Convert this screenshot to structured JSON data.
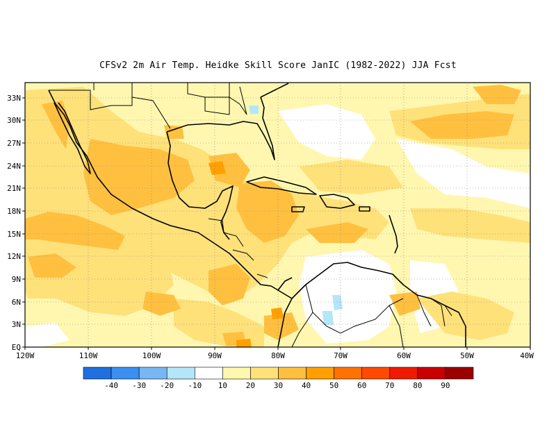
{
  "title": "CFSv2  2m Air Temp. Heidke Skill Score JanIC (1982-2022) JJA Fcst",
  "map": {
    "lat_labels": [
      "EQ",
      "3N",
      "6N",
      "9N",
      "12N",
      "15N",
      "18N",
      "21N",
      "24N",
      "27N",
      "30N",
      "33N"
    ],
    "lon_labels": [
      "120W",
      "110W",
      "100W",
      "90W",
      "80W",
      "70W",
      "60W",
      "50W",
      "40W"
    ],
    "lon_range": [
      -120,
      -40
    ],
    "lat_range": [
      0,
      35
    ]
  },
  "colorbar": {
    "colors": [
      "#1f6fe0",
      "#3a8ff0",
      "#78b6f4",
      "#b4e6fa",
      "#ffffff",
      "#fff7b0",
      "#ffe17a",
      "#ffc040",
      "#ffa000",
      "#ff7200",
      "#ff4a00",
      "#f01a00",
      "#c80000",
      "#9a0000"
    ],
    "labels": [
      "-40",
      "-30",
      "-20",
      "-10",
      "10",
      "20",
      "30",
      "40",
      "50",
      "60",
      "70",
      "80",
      "90"
    ]
  }
}
